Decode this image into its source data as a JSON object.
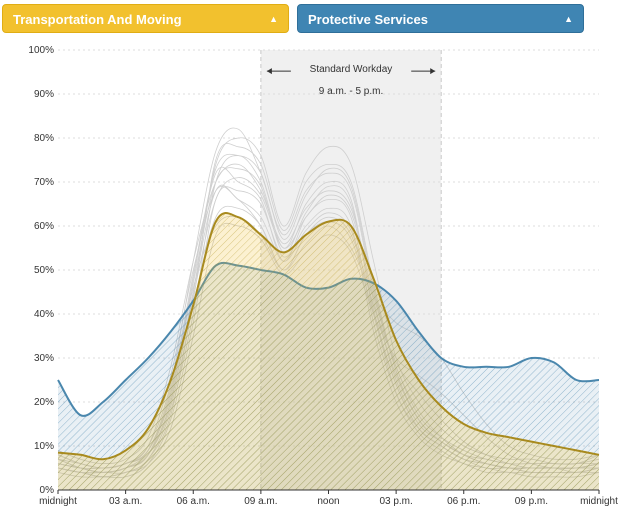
{
  "controls": {
    "select_a": {
      "value": "Transportation And Moving",
      "color": "#f2c12e"
    },
    "select_b": {
      "value": "Protective Services",
      "color": "#3f85b3"
    }
  },
  "annotation": {
    "title": "Standard Workday",
    "hours": "9 a.m. - 5 p.m.",
    "start_hour": 9,
    "end_hour": 17
  },
  "chart_data": {
    "type": "area",
    "x_unit": "hour of day",
    "x": [
      0,
      1,
      2,
      3,
      4,
      5,
      6,
      7,
      8,
      9,
      10,
      11,
      12,
      13,
      14,
      15,
      16,
      17,
      18,
      19,
      20,
      21,
      22,
      23,
      24
    ],
    "xticks": [
      0,
      3,
      6,
      9,
      12,
      15,
      18,
      21,
      24
    ],
    "xtick_labels": [
      "midnight",
      "03 a.m.",
      "06 a.m.",
      "09 a.m.",
      "noon",
      "03 p.m.",
      "06 p.m.",
      "09 p.m.",
      "midnight"
    ],
    "yticks": [
      0,
      10,
      20,
      30,
      40,
      50,
      60,
      70,
      80,
      90,
      100
    ],
    "ytick_labels": [
      "0%",
      "10%",
      "20%",
      "30%",
      "40%",
      "50%",
      "60%",
      "70%",
      "80%",
      "90%",
      "100%"
    ],
    "ylim": [
      0,
      100
    ],
    "grid": true,
    "series": [
      {
        "name": "Protective Services",
        "color": "#4a87ad",
        "values": [
          25,
          17,
          20,
          25,
          30,
          36,
          43,
          51,
          51,
          50,
          49,
          46,
          46,
          48,
          47,
          43,
          36,
          30,
          28,
          28,
          28,
          30,
          29,
          25,
          25
        ]
      },
      {
        "name": "Transportation And Moving",
        "color": "#a88a1e",
        "values": [
          8.5,
          8,
          7,
          9,
          14,
          25,
          42,
          61,
          62,
          58,
          54,
          58,
          61,
          60,
          48,
          34,
          25,
          19,
          15,
          13,
          12,
          11,
          10,
          9,
          8
        ]
      }
    ],
    "background_series": [
      [
        7,
        5,
        4,
        5,
        8,
        20,
        45,
        74,
        80,
        76,
        60,
        72,
        78,
        74,
        52,
        30,
        20,
        14,
        10,
        8,
        7,
        7,
        6,
        6,
        6
      ],
      [
        8,
        6,
        5,
        6,
        10,
        24,
        52,
        77,
        82,
        72,
        58,
        68,
        72,
        68,
        45,
        28,
        18,
        12,
        8,
        6,
        5,
        5,
        5,
        4,
        5
      ],
      [
        5,
        4,
        3,
        4,
        7,
        18,
        40,
        70,
        76,
        70,
        55,
        65,
        70,
        66,
        40,
        24,
        14,
        10,
        7,
        6,
        5,
        4,
        4,
        4,
        4
      ],
      [
        6,
        5,
        4,
        5,
        9,
        22,
        48,
        72,
        70,
        66,
        52,
        62,
        66,
        62,
        38,
        22,
        13,
        9,
        6,
        5,
        4,
        4,
        4,
        4,
        5
      ],
      [
        4,
        3,
        3,
        3,
        6,
        16,
        38,
        66,
        68,
        65,
        53,
        60,
        64,
        60,
        36,
        20,
        12,
        8,
        6,
        4,
        4,
        3,
        3,
        3,
        4
      ],
      [
        7,
        6,
        5,
        6,
        10,
        26,
        50,
        68,
        66,
        60,
        50,
        58,
        62,
        58,
        42,
        26,
        16,
        11,
        8,
        7,
        6,
        6,
        6,
        6,
        7
      ],
      [
        9,
        7,
        6,
        7,
        12,
        28,
        52,
        70,
        74,
        68,
        56,
        64,
        68,
        64,
        44,
        28,
        17,
        12,
        9,
        7,
        6,
        6,
        6,
        6,
        8
      ],
      [
        5,
        4,
        4,
        4,
        7,
        17,
        42,
        62,
        64,
        60,
        50,
        58,
        61,
        57,
        40,
        22,
        14,
        10,
        7,
        5,
        5,
        4,
        4,
        4,
        5
      ],
      [
        6,
        5,
        4,
        5,
        8,
        20,
        44,
        66,
        71,
        67,
        55,
        62,
        67,
        63,
        43,
        25,
        15,
        11,
        8,
        6,
        5,
        5,
        5,
        5,
        6
      ],
      [
        8,
        6,
        5,
        6,
        9,
        21,
        46,
        60,
        62,
        58,
        50,
        56,
        60,
        55,
        44,
        38,
        35,
        30,
        22,
        15,
        10,
        8,
        7,
        7,
        8
      ],
      [
        6,
        5,
        4,
        5,
        8,
        19,
        43,
        75,
        78,
        74,
        59,
        70,
        74,
        70,
        47,
        27,
        16,
        11,
        8,
        6,
        5,
        5,
        5,
        5,
        6
      ],
      [
        7,
        5,
        4,
        5,
        8,
        22,
        47,
        70,
        73,
        69,
        54,
        63,
        69,
        65,
        41,
        24,
        14,
        10,
        7,
        6,
        5,
        5,
        5,
        5,
        6
      ],
      [
        5,
        4,
        3,
        4,
        6,
        14,
        35,
        58,
        60,
        57,
        49,
        54,
        58,
        54,
        40,
        30,
        26,
        22,
        17,
        12,
        8,
        6,
        5,
        5,
        5
      ],
      [
        6,
        5,
        5,
        6,
        9,
        23,
        49,
        73,
        76,
        72,
        57,
        67,
        73,
        69,
        46,
        27,
        16,
        11,
        8,
        6,
        5,
        5,
        5,
        5,
        6
      ],
      [
        5,
        4,
        4,
        5,
        8,
        20,
        45,
        68,
        66,
        62,
        52,
        59,
        63,
        59,
        42,
        29,
        22,
        16,
        11,
        8,
        6,
        5,
        5,
        5,
        5
      ]
    ]
  }
}
